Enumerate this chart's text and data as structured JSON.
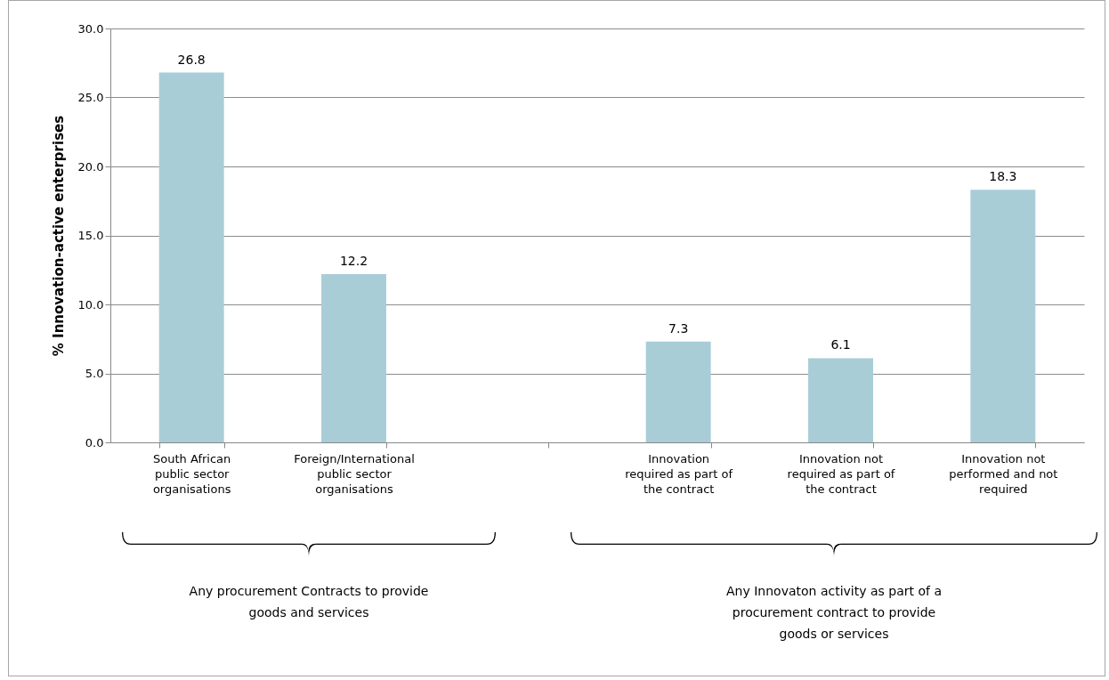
{
  "chart_data": {
    "type": "bar",
    "ylabel": "% Innovation-active enterprises",
    "categories": [
      "South African\npublic sector\norganisations",
      "Foreign/International\npublic sector\norganisations",
      null,
      "Innovation\nrequired as part of\nthe contract",
      "Innovation not\nrequired as part of\nthe contract",
      "Innovation not\nperformed and not\nrequired"
    ],
    "values": [
      26.8,
      12.2,
      null,
      7.3,
      6.1,
      18.3
    ],
    "color": "#a8cdd7",
    "ylim": [
      0,
      30
    ],
    "yticks": [
      {
        "value": 0,
        "label": "0.0"
      },
      {
        "value": 5,
        "label": "5.0"
      },
      {
        "value": 10,
        "label": "10.0"
      },
      {
        "value": 15,
        "label": "15.0"
      },
      {
        "value": 20,
        "label": "20.0"
      },
      {
        "value": 25,
        "label": "25.0"
      },
      {
        "value": 30,
        "label": "30.0"
      }
    ],
    "grid": "y",
    "data_labels": true,
    "annotations": [
      "Any procurement Contracts to provide\ngoods and services",
      "Any Innovaton activity as part of a\nprocurement contract to provide\ngoods or services"
    ]
  }
}
